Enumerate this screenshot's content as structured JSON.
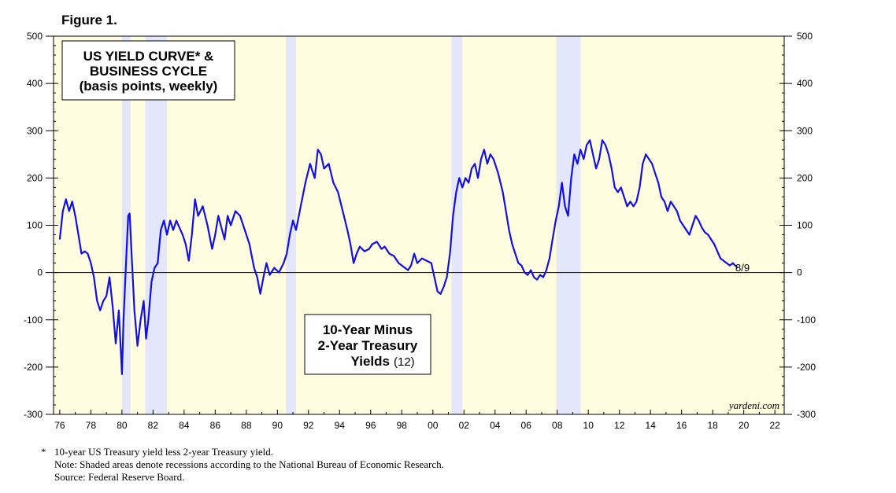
{
  "figure_label": "Figure 1.",
  "colors": {
    "plot_background": "#fffce0",
    "recession_shade": "#e4e6fb",
    "series_line": "#1010e6",
    "zero_line": "#000000"
  },
  "chart_data": {
    "type": "line",
    "title_lines": [
      "US YIELD CURVE* &",
      "BUSINESS CYCLE",
      "(basis points, weekly)"
    ],
    "series_label_lines": [
      "10-Year Minus",
      "2-Year Treasury",
      "Yields"
    ],
    "series_label_suffix": "(12)",
    "last_point_label": "8/9",
    "watermark": "yardeni.com",
    "x_tick_labels": [
      "76",
      "78",
      "80",
      "82",
      "84",
      "86",
      "88",
      "90",
      "92",
      "94",
      "96",
      "98",
      "00",
      "02",
      "04",
      "06",
      "08",
      "10",
      "12",
      "14",
      "16",
      "18",
      "20",
      "22"
    ],
    "y_tick_labels": [
      "500",
      "400",
      "300",
      "200",
      "100",
      "0",
      "-100",
      "-200",
      "-300"
    ],
    "x_range": [
      1975.6,
      2022.6
    ],
    "ylim": [
      -300,
      500
    ],
    "recessions": [
      [
        1980.0,
        1980.55
      ],
      [
        1981.5,
        1982.9
      ],
      [
        1990.55,
        1991.2
      ],
      [
        2001.2,
        2001.9
      ],
      [
        2007.95,
        2009.5
      ]
    ],
    "series": [
      {
        "name": "10-Year Minus 2-Year Treasury Yields",
        "points": [
          [
            1976.0,
            70
          ],
          [
            1976.2,
            130
          ],
          [
            1976.4,
            155
          ],
          [
            1976.6,
            130
          ],
          [
            1976.8,
            150
          ],
          [
            1977.0,
            120
          ],
          [
            1977.2,
            80
          ],
          [
            1977.4,
            40
          ],
          [
            1977.6,
            45
          ],
          [
            1977.8,
            40
          ],
          [
            1978.0,
            20
          ],
          [
            1978.2,
            -10
          ],
          [
            1978.4,
            -60
          ],
          [
            1978.6,
            -80
          ],
          [
            1978.8,
            -60
          ],
          [
            1979.0,
            -50
          ],
          [
            1979.2,
            -10
          ],
          [
            1979.4,
            -70
          ],
          [
            1979.6,
            -150
          ],
          [
            1979.8,
            -80
          ],
          [
            1980.0,
            -215
          ],
          [
            1980.1,
            -100
          ],
          [
            1980.25,
            10
          ],
          [
            1980.4,
            120
          ],
          [
            1980.5,
            125
          ],
          [
            1980.65,
            20
          ],
          [
            1980.8,
            -80
          ],
          [
            1981.0,
            -155
          ],
          [
            1981.2,
            -100
          ],
          [
            1981.4,
            -60
          ],
          [
            1981.55,
            -140
          ],
          [
            1981.7,
            -100
          ],
          [
            1981.9,
            -20
          ],
          [
            1982.1,
            10
          ],
          [
            1982.3,
            20
          ],
          [
            1982.5,
            90
          ],
          [
            1982.7,
            110
          ],
          [
            1982.9,
            80
          ],
          [
            1983.1,
            110
          ],
          [
            1983.3,
            90
          ],
          [
            1983.5,
            110
          ],
          [
            1983.7,
            95
          ],
          [
            1983.9,
            80
          ],
          [
            1984.1,
            60
          ],
          [
            1984.3,
            25
          ],
          [
            1984.5,
            80
          ],
          [
            1984.7,
            155
          ],
          [
            1984.9,
            120
          ],
          [
            1985.2,
            140
          ],
          [
            1985.5,
            100
          ],
          [
            1985.8,
            50
          ],
          [
            1986.0,
            80
          ],
          [
            1986.2,
            120
          ],
          [
            1986.4,
            95
          ],
          [
            1986.6,
            70
          ],
          [
            1986.8,
            120
          ],
          [
            1987.0,
            100
          ],
          [
            1987.3,
            130
          ],
          [
            1987.6,
            120
          ],
          [
            1987.9,
            90
          ],
          [
            1988.2,
            60
          ],
          [
            1988.5,
            10
          ],
          [
            1988.7,
            -10
          ],
          [
            1988.9,
            -45
          ],
          [
            1989.1,
            -10
          ],
          [
            1989.3,
            20
          ],
          [
            1989.5,
            -5
          ],
          [
            1989.8,
            10
          ],
          [
            1990.1,
            0
          ],
          [
            1990.4,
            20
          ],
          [
            1990.6,
            40
          ],
          [
            1990.8,
            80
          ],
          [
            1991.0,
            110
          ],
          [
            1991.2,
            90
          ],
          [
            1991.5,
            140
          ],
          [
            1991.8,
            190
          ],
          [
            1992.1,
            230
          ],
          [
            1992.4,
            200
          ],
          [
            1992.6,
            260
          ],
          [
            1992.8,
            250
          ],
          [
            1993.0,
            220
          ],
          [
            1993.3,
            230
          ],
          [
            1993.6,
            190
          ],
          [
            1993.9,
            170
          ],
          [
            1994.2,
            130
          ],
          [
            1994.5,
            90
          ],
          [
            1994.7,
            60
          ],
          [
            1994.9,
            20
          ],
          [
            1995.1,
            40
          ],
          [
            1995.3,
            55
          ],
          [
            1995.6,
            45
          ],
          [
            1995.9,
            50
          ],
          [
            1996.1,
            60
          ],
          [
            1996.4,
            65
          ],
          [
            1996.7,
            50
          ],
          [
            1996.9,
            55
          ],
          [
            1997.2,
            40
          ],
          [
            1997.5,
            35
          ],
          [
            1997.8,
            20
          ],
          [
            1998.0,
            15
          ],
          [
            1998.2,
            10
          ],
          [
            1998.4,
            5
          ],
          [
            1998.6,
            15
          ],
          [
            1998.8,
            40
          ],
          [
            1999.0,
            20
          ],
          [
            1999.3,
            30
          ],
          [
            1999.6,
            25
          ],
          [
            1999.9,
            20
          ],
          [
            2000.1,
            -10
          ],
          [
            2000.3,
            -40
          ],
          [
            2000.5,
            -45
          ],
          [
            2000.7,
            -30
          ],
          [
            2000.9,
            -10
          ],
          [
            2001.1,
            40
          ],
          [
            2001.3,
            120
          ],
          [
            2001.5,
            170
          ],
          [
            2001.7,
            200
          ],
          [
            2001.9,
            180
          ],
          [
            2002.1,
            200
          ],
          [
            2002.3,
            190
          ],
          [
            2002.5,
            220
          ],
          [
            2002.7,
            230
          ],
          [
            2002.9,
            200
          ],
          [
            2003.1,
            240
          ],
          [
            2003.3,
            260
          ],
          [
            2003.5,
            230
          ],
          [
            2003.7,
            250
          ],
          [
            2003.9,
            240
          ],
          [
            2004.2,
            210
          ],
          [
            2004.5,
            170
          ],
          [
            2004.7,
            130
          ],
          [
            2004.9,
            90
          ],
          [
            2005.1,
            60
          ],
          [
            2005.3,
            40
          ],
          [
            2005.5,
            20
          ],
          [
            2005.7,
            15
          ],
          [
            2005.9,
            0
          ],
          [
            2006.1,
            -5
          ],
          [
            2006.3,
            5
          ],
          [
            2006.5,
            -10
          ],
          [
            2006.7,
            -15
          ],
          [
            2006.9,
            -5
          ],
          [
            2007.1,
            -10
          ],
          [
            2007.3,
            5
          ],
          [
            2007.5,
            30
          ],
          [
            2007.7,
            70
          ],
          [
            2007.9,
            110
          ],
          [
            2008.1,
            140
          ],
          [
            2008.3,
            190
          ],
          [
            2008.5,
            140
          ],
          [
            2008.7,
            120
          ],
          [
            2008.9,
            200
          ],
          [
            2009.1,
            250
          ],
          [
            2009.3,
            230
          ],
          [
            2009.5,
            260
          ],
          [
            2009.7,
            240
          ],
          [
            2009.9,
            270
          ],
          [
            2010.1,
            280
          ],
          [
            2010.3,
            250
          ],
          [
            2010.5,
            220
          ],
          [
            2010.7,
            240
          ],
          [
            2010.9,
            280
          ],
          [
            2011.1,
            270
          ],
          [
            2011.3,
            250
          ],
          [
            2011.5,
            220
          ],
          [
            2011.7,
            180
          ],
          [
            2011.9,
            170
          ],
          [
            2012.1,
            180
          ],
          [
            2012.3,
            160
          ],
          [
            2012.5,
            140
          ],
          [
            2012.7,
            150
          ],
          [
            2012.9,
            140
          ],
          [
            2013.1,
            150
          ],
          [
            2013.3,
            180
          ],
          [
            2013.5,
            230
          ],
          [
            2013.7,
            250
          ],
          [
            2013.9,
            240
          ],
          [
            2014.1,
            230
          ],
          [
            2014.3,
            210
          ],
          [
            2014.5,
            190
          ],
          [
            2014.7,
            160
          ],
          [
            2014.9,
            150
          ],
          [
            2015.1,
            130
          ],
          [
            2015.3,
            150
          ],
          [
            2015.5,
            140
          ],
          [
            2015.7,
            130
          ],
          [
            2015.9,
            110
          ],
          [
            2016.1,
            100
          ],
          [
            2016.3,
            90
          ],
          [
            2016.5,
            80
          ],
          [
            2016.7,
            100
          ],
          [
            2016.9,
            120
          ],
          [
            2017.1,
            110
          ],
          [
            2017.3,
            95
          ],
          [
            2017.5,
            85
          ],
          [
            2017.7,
            80
          ],
          [
            2017.9,
            70
          ],
          [
            2018.1,
            60
          ],
          [
            2018.3,
            45
          ],
          [
            2018.5,
            30
          ],
          [
            2018.7,
            25
          ],
          [
            2018.9,
            20
          ],
          [
            2019.1,
            15
          ],
          [
            2019.3,
            20
          ],
          [
            2019.45,
            15
          ],
          [
            2019.6,
            10
          ]
        ]
      }
    ]
  },
  "footnotes": {
    "marker": "*",
    "line1": "10-year US Treasury yield less 2-year Treasury yield.",
    "line2": "Note: Shaded areas denote recessions according to the National Bureau of Economic Research.",
    "line3": "Source: Federal Reserve Board."
  }
}
